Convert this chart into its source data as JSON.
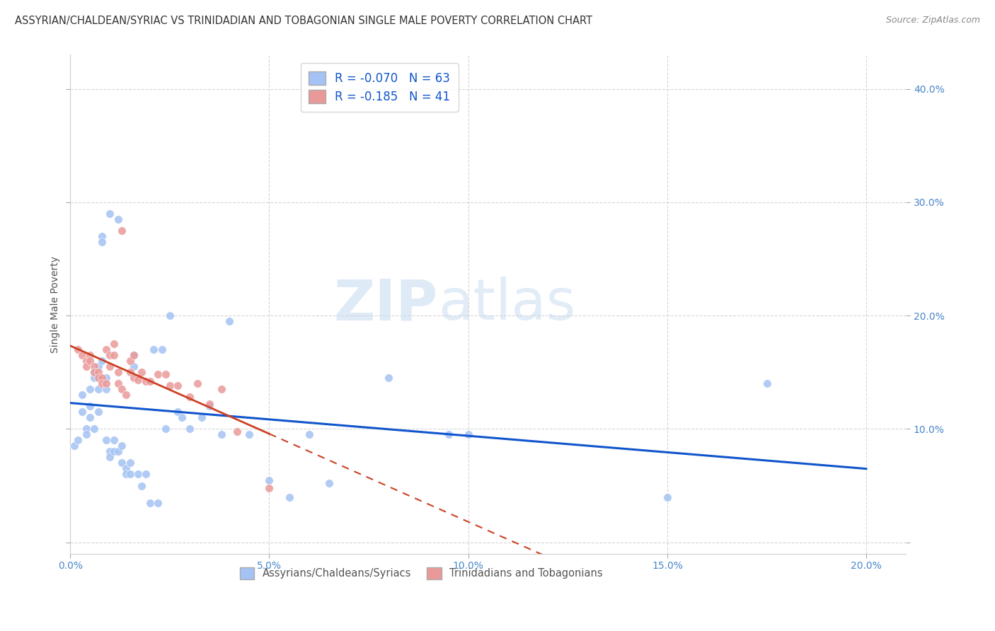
{
  "title": "ASSYRIAN/CHALDEAN/SYRIAC VS TRINIDADIAN AND TOBAGONIAN SINGLE MALE POVERTY CORRELATION CHART",
  "source": "Source: ZipAtlas.com",
  "ylabel": "Single Male Poverty",
  "background_color": "#ffffff",
  "grid_color": "#cccccc",
  "watermark_zip": "ZIP",
  "watermark_atlas": "atlas",
  "xlim": [
    0.0,
    0.21
  ],
  "ylim": [
    -0.01,
    0.43
  ],
  "xticks": [
    0.0,
    0.05,
    0.1,
    0.15,
    0.2
  ],
  "yticks": [
    0.0,
    0.1,
    0.2,
    0.3,
    0.4
  ],
  "blue_R": -0.07,
  "blue_N": 63,
  "pink_R": -0.185,
  "pink_N": 41,
  "blue_color": "#a4c2f4",
  "pink_color": "#ea9999",
  "blue_line_color": "#1155cc",
  "pink_line_color": "#cc4125",
  "legend_label_blue": "Assyrians/Chaldeans/Syriacs",
  "legend_label_pink": "Trinidadians and Tobagonians",
  "blue_x": [
    0.001,
    0.002,
    0.003,
    0.003,
    0.004,
    0.004,
    0.005,
    0.005,
    0.005,
    0.006,
    0.006,
    0.006,
    0.007,
    0.007,
    0.007,
    0.007,
    0.008,
    0.008,
    0.008,
    0.009,
    0.009,
    0.009,
    0.01,
    0.01,
    0.01,
    0.011,
    0.011,
    0.012,
    0.012,
    0.013,
    0.013,
    0.014,
    0.014,
    0.015,
    0.015,
    0.016,
    0.016,
    0.017,
    0.018,
    0.019,
    0.02,
    0.021,
    0.022,
    0.023,
    0.024,
    0.025,
    0.027,
    0.028,
    0.03,
    0.033,
    0.035,
    0.038,
    0.04,
    0.045,
    0.05,
    0.055,
    0.06,
    0.065,
    0.08,
    0.095,
    0.1,
    0.15,
    0.175
  ],
  "blue_y": [
    0.085,
    0.09,
    0.115,
    0.13,
    0.1,
    0.095,
    0.135,
    0.12,
    0.11,
    0.15,
    0.145,
    0.1,
    0.155,
    0.145,
    0.135,
    0.115,
    0.16,
    0.27,
    0.265,
    0.145,
    0.135,
    0.09,
    0.08,
    0.29,
    0.075,
    0.09,
    0.08,
    0.285,
    0.08,
    0.085,
    0.07,
    0.065,
    0.06,
    0.07,
    0.06,
    0.165,
    0.155,
    0.06,
    0.05,
    0.06,
    0.035,
    0.17,
    0.035,
    0.17,
    0.1,
    0.2,
    0.115,
    0.11,
    0.1,
    0.11,
    0.12,
    0.095,
    0.195,
    0.095,
    0.055,
    0.04,
    0.095,
    0.052,
    0.145,
    0.095,
    0.095,
    0.04,
    0.14
  ],
  "pink_x": [
    0.002,
    0.003,
    0.004,
    0.004,
    0.005,
    0.005,
    0.006,
    0.006,
    0.007,
    0.007,
    0.008,
    0.008,
    0.009,
    0.009,
    0.01,
    0.01,
    0.011,
    0.011,
    0.012,
    0.012,
    0.013,
    0.013,
    0.014,
    0.015,
    0.015,
    0.016,
    0.016,
    0.017,
    0.018,
    0.019,
    0.02,
    0.022,
    0.024,
    0.025,
    0.027,
    0.03,
    0.032,
    0.035,
    0.038,
    0.042,
    0.05
  ],
  "pink_y": [
    0.17,
    0.165,
    0.16,
    0.155,
    0.165,
    0.16,
    0.155,
    0.15,
    0.15,
    0.145,
    0.145,
    0.14,
    0.14,
    0.17,
    0.165,
    0.155,
    0.175,
    0.165,
    0.15,
    0.14,
    0.135,
    0.275,
    0.13,
    0.16,
    0.15,
    0.145,
    0.165,
    0.143,
    0.15,
    0.142,
    0.142,
    0.148,
    0.148,
    0.138,
    0.138,
    0.128,
    0.14,
    0.122,
    0.135,
    0.098,
    0.048
  ]
}
